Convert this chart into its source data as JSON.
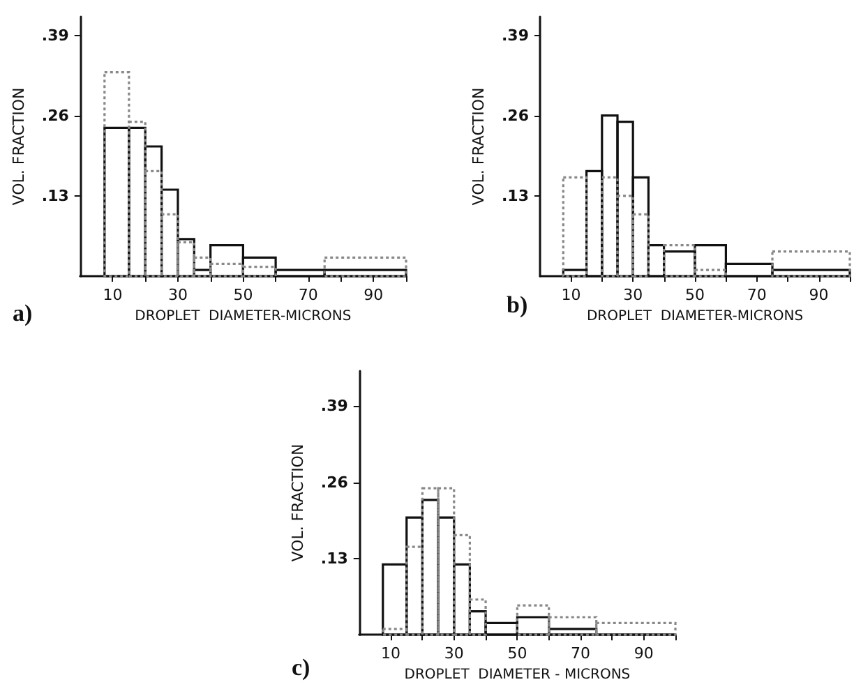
{
  "chart_data": [
    {
      "type": "histogram",
      "title": "a)",
      "xlabel": "DROPLET  DIAMETER-MICRONS",
      "ylabel": "VOL. FRACTION",
      "bins": [
        7.5,
        15,
        20,
        25,
        30,
        35,
        40,
        50,
        60,
        75,
        100
      ],
      "series": [
        {
          "color": "#111111",
          "line_style": "solid",
          "values": [
            0.24,
            0.24,
            0.21,
            0.14,
            0.06,
            0.01,
            0.05,
            0.03,
            0.01,
            0.01
          ]
        },
        {
          "color": "#888888",
          "line_style": "dotted",
          "values": [
            0.33,
            0.25,
            0.17,
            0.1,
            0.055,
            0.03,
            0.02,
            0.015,
            null,
            0.03
          ]
        }
      ],
      "xlim": [
        0,
        100
      ],
      "xticks": [
        10,
        {
          "value": 20,
          "label": null
        },
        30,
        {
          "value": 40,
          "label": null
        },
        50,
        {
          "value": 60,
          "label": null
        },
        70,
        {
          "value": 80,
          "label": null
        },
        90,
        {
          "value": 100,
          "label": null
        }
      ],
      "ylim": [
        0,
        0.42
      ],
      "yticks": [
        {
          "value": 0.13,
          "label": ".13"
        },
        {
          "value": 0.26,
          "label": ".26"
        },
        {
          "value": 0.39,
          "label": ".39"
        }
      ],
      "grid": false
    },
    {
      "type": "histogram",
      "title": "b)",
      "xlabel": "DROPLET  DIAMETER-MICRONS",
      "ylabel": "VOL. FRACTION",
      "bins": [
        7.5,
        15,
        20,
        25,
        30,
        35,
        40,
        50,
        60,
        75,
        100
      ],
      "series": [
        {
          "color": "#111111",
          "line_style": "solid",
          "values": [
            0.01,
            0.17,
            0.26,
            0.25,
            0.16,
            0.05,
            0.04,
            0.05,
            0.02,
            0.01
          ]
        },
        {
          "color": "#888888",
          "line_style": "dotted",
          "values": [
            0.16,
            null,
            0.16,
            0.13,
            0.1,
            null,
            0.05,
            0.01,
            null,
            0.04
          ]
        }
      ],
      "xlim": [
        0,
        100
      ],
      "xticks": [
        10,
        {
          "value": 20,
          "label": null
        },
        30,
        {
          "value": 40,
          "label": null
        },
        50,
        {
          "value": 60,
          "label": null
        },
        70,
        {
          "value": 80,
          "label": null
        },
        90,
        {
          "value": 100,
          "label": null
        }
      ],
      "ylim": [
        0,
        0.42
      ],
      "yticks": [
        {
          "value": 0.13,
          "label": ".13"
        },
        {
          "value": 0.26,
          "label": ".26"
        },
        {
          "value": 0.39,
          "label": ".39"
        }
      ],
      "grid": false
    },
    {
      "type": "histogram",
      "title": "c)",
      "xlabel": "DROPLET  DIAMETER - MICRONS",
      "ylabel": "VOL. FRACTION",
      "bins": [
        7.5,
        15,
        20,
        25,
        30,
        35,
        40,
        50,
        60,
        75,
        100
      ],
      "series": [
        {
          "color": "#111111",
          "line_style": "solid",
          "values": [
            0.12,
            0.2,
            0.23,
            0.2,
            0.12,
            0.04,
            0.02,
            0.03,
            0.01,
            0
          ]
        },
        {
          "color": "#888888",
          "line_style": "dotted",
          "values": [
            0.01,
            0.15,
            0.25,
            0.25,
            0.17,
            0.06,
            null,
            0.05,
            0.03,
            0.02
          ]
        }
      ],
      "xlim": [
        0,
        100
      ],
      "xticks": [
        10,
        {
          "value": 20,
          "label": null
        },
        30,
        {
          "value": 40,
          "label": null
        },
        50,
        {
          "value": 60,
          "label": null
        },
        70,
        {
          "value": 80,
          "label": null
        },
        90,
        {
          "value": 100,
          "label": null
        }
      ],
      "ylim": [
        0,
        0.45
      ],
      "yticks": [
        {
          "value": 0.13,
          "label": ".13"
        },
        {
          "value": 0.26,
          "label": ".26"
        },
        {
          "value": 0.39,
          "label": ".39"
        }
      ],
      "grid": false
    }
  ]
}
